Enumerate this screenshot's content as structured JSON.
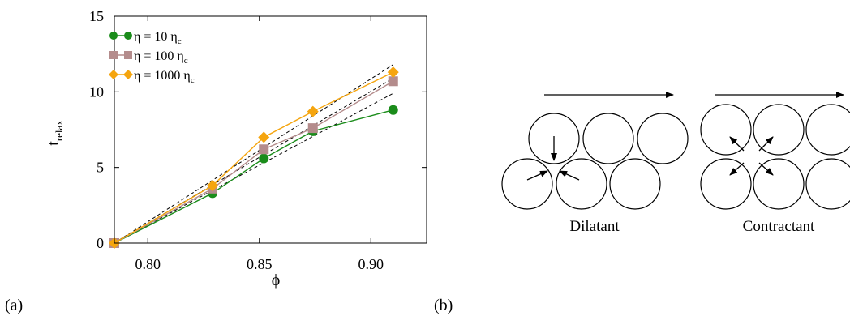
{
  "panel_a": {
    "label": "(a)",
    "chart_data": {
      "type": "line",
      "xlabel": "ϕ",
      "ylabel": "t",
      "ylabel_sub": "relax",
      "xlim": [
        0.785,
        0.925
      ],
      "ylim": [
        0,
        15
      ],
      "xticks": [
        0.8,
        0.85,
        0.9
      ],
      "xtick_labels": [
        "0.80",
        "0.85",
        "0.90"
      ],
      "yticks": [
        0,
        5,
        10,
        15
      ],
      "ytick_labels": [
        "0",
        "5",
        "10",
        "15"
      ],
      "grid": false,
      "legend_position": "top-left",
      "series": [
        {
          "name": "η = 10 η",
          "name_sub": "c",
          "color": "#1a8c1a",
          "marker": "circle",
          "x": [
            0.785,
            0.829,
            0.852,
            0.874,
            0.91
          ],
          "values": [
            0.0,
            3.3,
            5.6,
            7.4,
            8.8
          ]
        },
        {
          "name": "η = 100 η",
          "name_sub": "c",
          "color": "#b48c8c",
          "marker": "square",
          "x": [
            0.785,
            0.829,
            0.852,
            0.874,
            0.91
          ],
          "values": [
            0.0,
            3.6,
            6.2,
            7.6,
            10.7
          ]
        },
        {
          "name": "η = 1000 η",
          "name_sub": "c",
          "color": "#f5a50f",
          "marker": "diamond",
          "x": [
            0.785,
            0.829,
            0.852,
            0.874,
            0.91
          ],
          "values": [
            0.0,
            3.8,
            7.0,
            8.7,
            11.3
          ]
        }
      ],
      "reference_lines": [
        {
          "x": [
            0.785,
            0.91
          ],
          "values": [
            0.0,
            11.8
          ]
        },
        {
          "x": [
            0.785,
            0.91
          ],
          "values": [
            0.0,
            10.9
          ]
        },
        {
          "x": [
            0.785,
            0.91
          ],
          "values": [
            0.0,
            9.9
          ]
        }
      ],
      "reference_line_style": "dashed",
      "reference_line_color": "#000000"
    }
  },
  "panel_b": {
    "label": "(b)",
    "left_caption": "Dilatant",
    "right_caption": "Contractant"
  }
}
